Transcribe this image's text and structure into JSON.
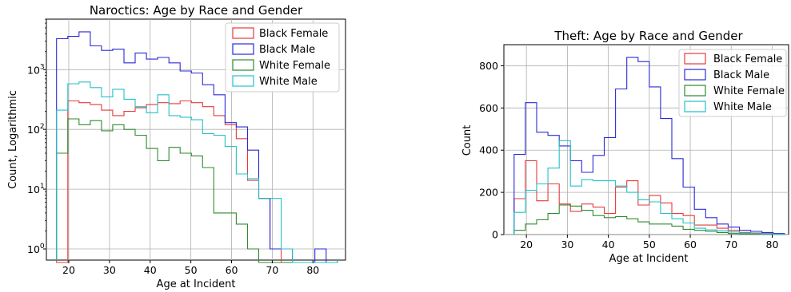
{
  "chart_data": [
    {
      "type": "step-histogram",
      "title": "Naroctics: Age by Race and Gender",
      "xlabel": "Age at Incident",
      "ylabel": "Count, Logarithmic",
      "yscale": "log",
      "xlim": [
        14.5,
        88
      ],
      "ylim": [
        0.65,
        7000
      ],
      "xticks": [
        "20",
        "30",
        "40",
        "50",
        "60",
        "70",
        "80"
      ],
      "yticks": [
        "10^0",
        "10^1",
        "10^2",
        "10^3"
      ],
      "grid": true,
      "legend_position": "top-right",
      "bin_edges": [
        17,
        19.76,
        22.52,
        25.28,
        28.04,
        30.8,
        33.56,
        36.32,
        39.08,
        41.84,
        44.6,
        47.36,
        50.12,
        52.88,
        55.64,
        58.4,
        61.16,
        63.92,
        66.68,
        69.44,
        72.2,
        74.96,
        77.72,
        80.48,
        83.24,
        86
      ],
      "series": [
        {
          "name": "Black Female",
          "color": "#e8393a",
          "values": [
            0,
            300,
            280,
            260,
            210,
            170,
            200,
            230,
            260,
            280,
            270,
            300,
            280,
            240,
            170,
            120,
            70,
            14,
            7,
            1,
            0,
            0,
            0,
            0,
            0
          ]
        },
        {
          "name": "Black Male",
          "color": "#2a2ad8",
          "values": [
            3300,
            3600,
            4300,
            2500,
            2100,
            2200,
            1300,
            1900,
            1500,
            1600,
            1300,
            950,
            880,
            560,
            380,
            130,
            110,
            45,
            7,
            1,
            1,
            0,
            0,
            1,
            0
          ]
        },
        {
          "name": "White Female",
          "color": "#2e8b2e",
          "values": [
            40,
            150,
            120,
            140,
            95,
            120,
            100,
            80,
            48,
            30,
            50,
            40,
            36,
            23,
            4,
            4,
            2.6,
            1,
            0,
            0,
            0,
            0,
            0,
            0,
            0
          ]
        },
        {
          "name": "White Male",
          "color": "#23c1c8",
          "values": [
            210,
            580,
            620,
            500,
            350,
            470,
            320,
            240,
            190,
            380,
            170,
            160,
            145,
            85,
            80,
            52,
            18,
            15,
            7,
            7,
            1,
            0,
            0,
            0,
            0
          ]
        }
      ]
    },
    {
      "type": "step-histogram",
      "title": "Theft: Age by Race and Gender",
      "xlabel": "Age at Incident",
      "ylabel": "Count",
      "yscale": "linear",
      "xlim": [
        14.5,
        84
      ],
      "ylim": [
        0,
        900
      ],
      "xticks": [
        "20",
        "30",
        "40",
        "50",
        "60",
        "70",
        "80"
      ],
      "yticks": [
        "0",
        "200",
        "400",
        "600",
        "800"
      ],
      "grid": true,
      "legend_position": "top-right",
      "bin_edges": [
        17,
        19.75,
        22.5,
        25.25,
        28,
        30.75,
        33.5,
        36.25,
        39,
        41.75,
        44.5,
        47.25,
        50,
        52.75,
        55.5,
        58.25,
        61,
        63.75,
        66.5,
        69.25,
        72,
        74.75,
        77.5,
        80.25,
        83
      ],
      "series": [
        {
          "name": "Black Female",
          "color": "#e8393a",
          "values": [
            170,
            350,
            160,
            240,
            145,
            110,
            145,
            130,
            100,
            225,
            255,
            140,
            185,
            150,
            100,
            90,
            45,
            45,
            30,
            20,
            10,
            7,
            5,
            3
          ]
        },
        {
          "name": "Black Male",
          "color": "#2a2ad8",
          "values": [
            380,
            625,
            485,
            470,
            420,
            350,
            295,
            375,
            460,
            690,
            840,
            820,
            700,
            550,
            360,
            225,
            120,
            80,
            50,
            35,
            20,
            15,
            10,
            5
          ]
        },
        {
          "name": "White Female",
          "color": "#2e8b2e",
          "values": [
            20,
            50,
            70,
            100,
            140,
            135,
            115,
            90,
            80,
            85,
            75,
            60,
            50,
            50,
            40,
            25,
            20,
            15,
            10,
            5,
            3,
            2,
            1,
            1
          ]
        },
        {
          "name": "White Male",
          "color": "#23c1c8",
          "values": [
            105,
            210,
            240,
            315,
            445,
            230,
            260,
            255,
            255,
            230,
            200,
            165,
            155,
            100,
            75,
            55,
            30,
            22,
            18,
            12,
            7,
            5,
            3,
            2
          ]
        }
      ]
    }
  ]
}
